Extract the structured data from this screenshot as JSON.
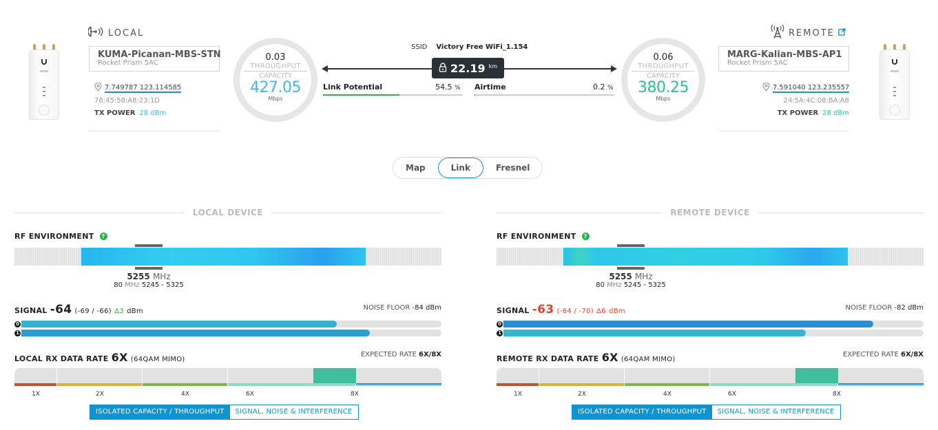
{
  "local": {
    "title": "LOCAL",
    "device_name": "KUMA-Picanan-MBS-STN",
    "model": "Rocket Prism 5AC",
    "coordinates": "7.749787  123.114585",
    "mac": "78:45:58:A8:23:1D",
    "tx_power_label": "TX POWER",
    "tx_power_value": "28 dBm",
    "throughput": "0.03",
    "throughput_label": "THROUGHPUT",
    "capacity_label": "CAPACITY",
    "capacity": "427.05",
    "capacity_unit": "Mbps",
    "accent": "#3db8e8"
  },
  "remote": {
    "title": "REMOTE",
    "device_name": "MARG-Kalian-MBS-AP1",
    "model": "Rocket Prism 5AC",
    "coordinates": "7.591040  123.235557",
    "mac": "24:5A:4C:08:BA:A8",
    "tx_power_label": "TX POWER",
    "tx_power_value": "28 dBm",
    "throughput": "0.06",
    "throughput_label": "THROUGHPUT",
    "capacity_label": "CAPACITY",
    "capacity": "380.25",
    "capacity_unit": "Mbps",
    "accent": "#2fbf8e"
  },
  "link": {
    "ssid_label": "SSID",
    "ssid": "Victory Free WiFi_1.154",
    "distance": "22.19",
    "distance_unit": "km",
    "link_potential_label": "Link Potential",
    "link_potential_value": "54.5",
    "link_potential_pct": 54.5,
    "airtime_label": "Airtime",
    "airtime_value": "0.2",
    "airtime_pct": 0.2,
    "pct_sign": "%"
  },
  "view_tabs": [
    {
      "label": "Map",
      "active": false
    },
    {
      "label": "Link",
      "active": true
    },
    {
      "label": "Fresnel",
      "active": false
    }
  ],
  "panels": [
    {
      "key": "local",
      "section_title": "LOCAL DEVICE",
      "rf_label": "RF ENVIRONMENT",
      "help": "?",
      "freq": "5255",
      "freq_unit": "MHz",
      "width": "80",
      "width_unit": "MHz",
      "range": "5245 - 5325",
      "signal_label": "SIGNAL",
      "signal": "-64",
      "signal_chains": "(-69 / -66)",
      "signal_delta": "Δ3",
      "signal_unit": "dBm",
      "signal_color": "#222222",
      "delta_color": "#2db34a",
      "noise_label": "NOISE FLOOR",
      "noise_value": "-84 dBm",
      "chains": [
        {
          "index": "0",
          "pct": 75,
          "color": "#35b2cf"
        },
        {
          "index": "1",
          "pct": 83,
          "color": "#2a9fd0"
        }
      ],
      "rate_label": "LOCAL RX DATA RATE",
      "rate": "6X",
      "rate_detail": "(64QAM MIMO)",
      "expected_label": "EXPECTED RATE",
      "expected_value": "6X/8X",
      "rate_ticks": [
        "1X",
        "2X",
        "4X",
        "6X",
        "8X"
      ],
      "toggle_on": "ISOLATED CAPACITY / THROUGHPUT",
      "toggle_off": "SIGNAL, NOISE & INTERFERENCE"
    },
    {
      "key": "remote",
      "section_title": "REMOTE DEVICE",
      "rf_label": "RF ENVIRONMENT",
      "help": "?",
      "freq": "5255",
      "freq_unit": "MHz",
      "width": "80",
      "width_unit": "MHz",
      "range": "5245 - 5325",
      "signal_label": "SIGNAL",
      "signal": "-63",
      "signal_chains": "(-64 / -70)",
      "signal_delta": "Δ6",
      "signal_unit": "dBm",
      "signal_color": "#e0452d",
      "delta_color": "#e0452d",
      "noise_label": "NOISE FLOOR",
      "noise_value": "-82 dBm",
      "chains": [
        {
          "index": "0",
          "pct": 88,
          "color": "#2a8fd0"
        },
        {
          "index": "1",
          "pct": 72,
          "color": "#35b5cf"
        }
      ],
      "rate_label": "REMOTE RX DATA RATE",
      "rate": "6X",
      "rate_detail": "(64QAM MIMO)",
      "expected_label": "EXPECTED RATE",
      "expected_value": "6X/8X",
      "rate_ticks": [
        "1X",
        "2X",
        "4X",
        "6X",
        "8X"
      ],
      "toggle_on": "ISOLATED CAPACITY / THROUGHPUT",
      "toggle_off": "SIGNAL, NOISE & INTERFERENCE"
    }
  ]
}
